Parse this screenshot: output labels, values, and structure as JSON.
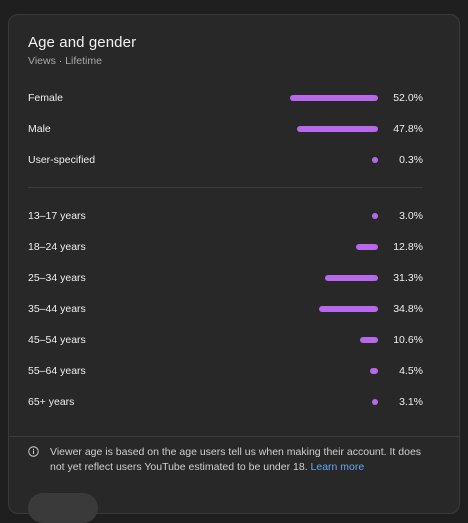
{
  "header": {
    "title": "Age and gender",
    "subtitle": "Views · Lifetime"
  },
  "gender": [
    {
      "label": "Female",
      "percent_text": "52.0%",
      "value": 52.0
    },
    {
      "label": "Male",
      "percent_text": "47.8%",
      "value": 47.8
    },
    {
      "label": "User-specified",
      "percent_text": "0.3%",
      "value": 0.3
    }
  ],
  "age": [
    {
      "label": "13–17 years",
      "percent_text": "3.0%",
      "value": 3.0
    },
    {
      "label": "18–24 years",
      "percent_text": "12.8%",
      "value": 12.8
    },
    {
      "label": "25–34 years",
      "percent_text": "31.3%",
      "value": 31.3
    },
    {
      "label": "35–44 years",
      "percent_text": "34.8%",
      "value": 34.8
    },
    {
      "label": "45–54 years",
      "percent_text": "10.6%",
      "value": 10.6
    },
    {
      "label": "55–64 years",
      "percent_text": "4.5%",
      "value": 4.5
    },
    {
      "label": "65+ years",
      "percent_text": "3.1%",
      "value": 3.1
    }
  ],
  "note": {
    "text": "Viewer age is based on the age users tell us when making their account. It does not yet reflect users YouTube estimated to be under 18.",
    "link": "Learn more",
    "icon": "info-icon"
  },
  "colors": {
    "bar": "#b868ea",
    "link": "#62a6f0"
  }
}
